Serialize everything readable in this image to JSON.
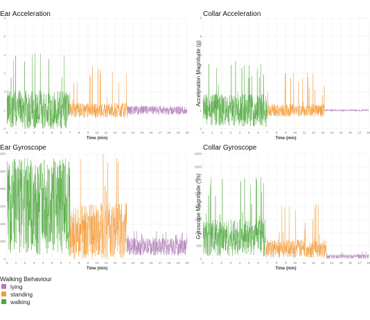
{
  "colors": {
    "lying": "#b07cb7",
    "standing": "#f39a33",
    "walking": "#4fa83d",
    "grid": "#eeeeee"
  },
  "legend": {
    "title": "Walking Behaviour",
    "items": [
      {
        "key": "lying",
        "label": "lying"
      },
      {
        "key": "standing",
        "label": "standing"
      },
      {
        "key": "walking",
        "label": "walking"
      }
    ]
  },
  "chart_data": [
    {
      "id": "ear-acc",
      "type": "line",
      "title": "Ear Acceleration",
      "xlabel": "Time (min)",
      "ylabel": "",
      "xlim": [
        0,
        20
      ],
      "ylim": [
        0,
        6
      ],
      "x_ticks": [
        0,
        1,
        2,
        3,
        4,
        5,
        6,
        7,
        8,
        9,
        10,
        11,
        12,
        13,
        14,
        15,
        16,
        17,
        18,
        19,
        20
      ],
      "y_ticks": [
        0,
        1,
        2,
        3,
        4,
        5,
        6
      ],
      "segments": [
        {
          "behaviour": "walking",
          "x": [
            0,
            7
          ],
          "baseline": 1.0,
          "amplitude": 1.1,
          "peak": 4.2
        },
        {
          "behaviour": "standing",
          "x": [
            7,
            13.4
          ],
          "baseline": 1.0,
          "amplitude": 0.4,
          "peak": 3.4
        },
        {
          "behaviour": "lying",
          "x": [
            13.4,
            20
          ],
          "baseline": 1.0,
          "amplitude": 0.25,
          "peak": 1.2
        }
      ]
    },
    {
      "id": "collar-acc",
      "type": "line",
      "title": "Collar Acceleration",
      "xlabel": "Time (min)",
      "ylabel": "Acceleration Magnitude (g)",
      "xlim": [
        0,
        18
      ],
      "ylim": [
        0,
        6
      ],
      "x_ticks": [
        0,
        1,
        2,
        3,
        4,
        5,
        6,
        7,
        8,
        9,
        10,
        11,
        12,
        13,
        14,
        15,
        16,
        17,
        18
      ],
      "y_ticks": [
        0,
        1,
        2,
        3,
        4,
        5,
        6
      ],
      "segments": [
        {
          "behaviour": "walking",
          "x": [
            0,
            7
          ],
          "baseline": 1.0,
          "amplitude": 0.9,
          "peak": 3.7
        },
        {
          "behaviour": "standing",
          "x": [
            7,
            13.2
          ],
          "baseline": 1.0,
          "amplitude": 0.35,
          "peak": 3.1
        },
        {
          "behaviour": "lying",
          "x": [
            13.2,
            18
          ],
          "baseline": 1.0,
          "amplitude": 0.05,
          "peak": 1.1
        }
      ]
    },
    {
      "id": "ear-gyro",
      "type": "line",
      "title": "Ear Gyroscope",
      "xlabel": "Time (min)",
      "ylabel": "",
      "xlim": [
        0,
        20
      ],
      "ylim": [
        0,
        3000
      ],
      "x_ticks": [
        0,
        1,
        2,
        3,
        4,
        5,
        6,
        7,
        8,
        9,
        10,
        11,
        12,
        13,
        14,
        15,
        16,
        17,
        18,
        19,
        20
      ],
      "y_ticks": [
        0,
        500,
        1000,
        1500,
        2000,
        2500,
        3000
      ],
      "segments": [
        {
          "behaviour": "walking",
          "x": [
            0,
            7
          ],
          "baseline": 1500,
          "amplitude": 1400,
          "peak": 3000
        },
        {
          "behaviour": "standing",
          "x": [
            7,
            13.3
          ],
          "baseline": 700,
          "amplitude": 900,
          "peak": 3000
        },
        {
          "behaviour": "lying",
          "x": [
            13.3,
            20
          ],
          "baseline": 350,
          "amplitude": 250,
          "peak": 800
        }
      ]
    },
    {
      "id": "collar-gyro",
      "type": "line",
      "title": "Collar Gyroscope",
      "xlabel": "Time (min)",
      "ylabel": "Gyroscope Magnitude (°/s)",
      "xlim": [
        0,
        18
      ],
      "ylim": [
        0,
        4000
      ],
      "x_ticks": [
        0,
        1,
        2,
        3,
        4,
        5,
        6,
        7,
        8,
        9,
        10,
        11,
        12,
        13,
        14,
        15,
        16,
        17,
        18
      ],
      "y_ticks": [
        0,
        500,
        1000,
        1500,
        2000,
        2500,
        3000,
        3500,
        4000
      ],
      "segments": [
        {
          "behaviour": "walking",
          "x": [
            0,
            6.8
          ],
          "baseline": 800,
          "amplitude": 700,
          "peak": 3200
        },
        {
          "behaviour": "standing",
          "x": [
            6.8,
            13.4
          ],
          "baseline": 400,
          "amplitude": 350,
          "peak": 2200
        },
        {
          "behaviour": "lying",
          "x": [
            13.4,
            18
          ],
          "baseline": 100,
          "amplitude": 80,
          "peak": 300
        }
      ]
    }
  ]
}
